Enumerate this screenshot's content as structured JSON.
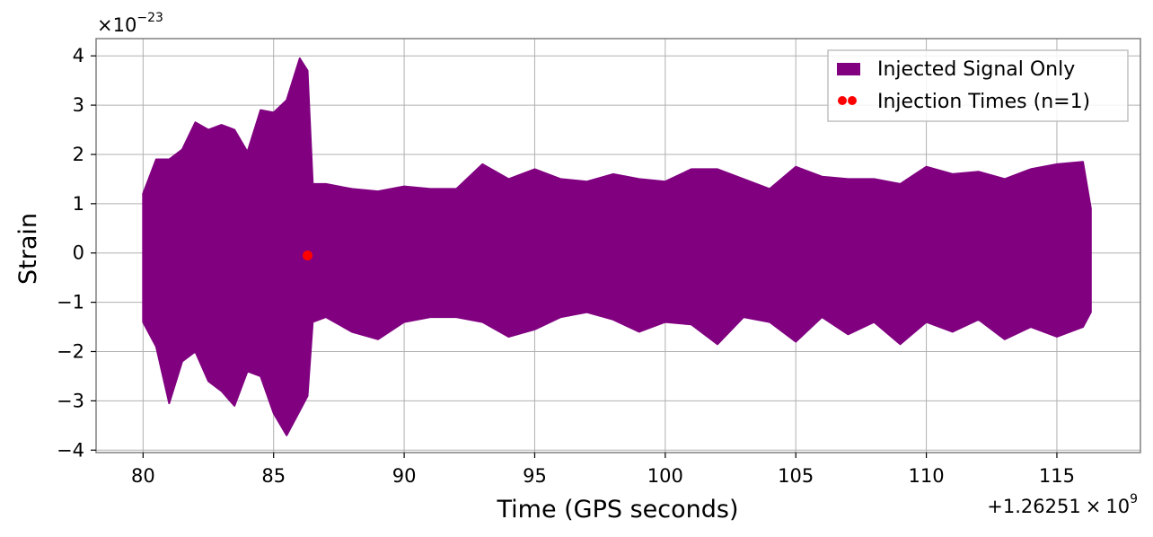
{
  "chart_data": {
    "type": "line",
    "title": "",
    "xlabel": "Time (GPS seconds)",
    "ylabel": "Strain",
    "xlim": [
      78.2,
      118.2
    ],
    "ylim": [
      -4.05,
      4.35
    ],
    "x_ticks": [
      80,
      85,
      90,
      95,
      100,
      105,
      110,
      115
    ],
    "y_ticks": [
      -4,
      -3,
      -2,
      -1,
      0,
      1,
      2,
      3,
      4
    ],
    "x_offset": {
      "prefix": "+1.26251",
      "times": "×",
      "base": "10",
      "exponent": "9"
    },
    "y_scale": {
      "prefix": "×",
      "base": "10",
      "exponent": "−23"
    },
    "grid": true,
    "legend_position": "top-right",
    "colors": {
      "signal": "#800080",
      "injection": "#ff0000",
      "grid": "#b0b0b0",
      "frame": "#808080"
    },
    "series": [
      {
        "name": "Injected Signal Only",
        "kind": "filled-oscillation",
        "x": [
          80.0,
          80.5,
          81.0,
          81.5,
          82.0,
          82.5,
          83.0,
          83.5,
          84.0,
          84.5,
          85.0,
          85.5,
          86.0,
          86.3,
          86.5,
          87.0,
          88.0,
          89.0,
          90.0,
          91.0,
          92.0,
          93.0,
          94.0,
          95.0,
          96.0,
          97.0,
          98.0,
          99.0,
          100.0,
          101.0,
          102.0,
          103.0,
          104.0,
          105.0,
          106.0,
          107.0,
          108.0,
          109.0,
          110.0,
          111.0,
          112.0,
          113.0,
          114.0,
          115.0,
          116.0,
          116.3
        ],
        "upper": [
          1.2,
          1.9,
          1.9,
          2.1,
          2.65,
          2.5,
          2.6,
          2.5,
          2.05,
          2.9,
          2.85,
          3.1,
          3.95,
          3.7,
          1.4,
          1.4,
          1.3,
          1.25,
          1.35,
          1.3,
          1.3,
          1.8,
          1.5,
          1.7,
          1.5,
          1.45,
          1.6,
          1.5,
          1.45,
          1.7,
          1.7,
          1.5,
          1.3,
          1.75,
          1.55,
          1.5,
          1.5,
          1.4,
          1.75,
          1.6,
          1.65,
          1.5,
          1.7,
          1.8,
          1.85,
          0.9
        ],
        "lower": [
          -1.4,
          -1.9,
          -3.05,
          -2.2,
          -2.0,
          -2.6,
          -2.8,
          -3.1,
          -2.4,
          -2.5,
          -3.25,
          -3.7,
          -3.2,
          -2.9,
          -1.4,
          -1.3,
          -1.6,
          -1.75,
          -1.4,
          -1.3,
          -1.3,
          -1.4,
          -1.7,
          -1.55,
          -1.3,
          -1.2,
          -1.35,
          -1.6,
          -1.4,
          -1.45,
          -1.85,
          -1.3,
          -1.4,
          -1.8,
          -1.3,
          -1.65,
          -1.4,
          -1.85,
          -1.4,
          -1.6,
          -1.35,
          -1.75,
          -1.5,
          -1.7,
          -1.5,
          -1.2
        ]
      },
      {
        "name": "Injection Times (n=1)",
        "kind": "scatter",
        "x": [
          86.3
        ],
        "y": [
          -0.05
        ]
      }
    ]
  }
}
